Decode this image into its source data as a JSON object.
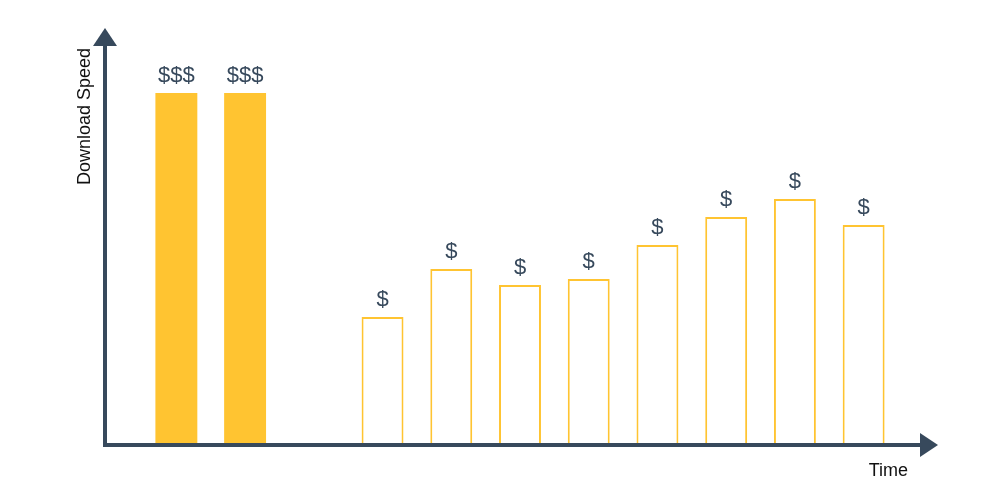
{
  "chart_data": {
    "type": "bar",
    "x_label": "Time",
    "y_label": "Download Speed",
    "categories": [
      null,
      null,
      null,
      null,
      null,
      null,
      null,
      null,
      null,
      null,
      null
    ],
    "series": [
      {
        "color": "#ffc431",
        "marker": "filled",
        "values": [
          88,
          88,
          null,
          null,
          null,
          null,
          null,
          null,
          null,
          null,
          null
        ]
      },
      {
        "color": "#ffc431",
        "marker": "outline",
        "values": [
          null,
          null,
          null,
          32,
          44,
          40,
          41.5,
          50,
          57,
          61.5,
          55
        ]
      }
    ],
    "annotations": [
      "$$$",
      "$$$",
      null,
      "$",
      "$",
      "$",
      "$",
      "$",
      "$",
      "$",
      "$"
    ],
    "ylim": [
      0,
      100
    ],
    "tick_labels": false,
    "grid": false
  }
}
